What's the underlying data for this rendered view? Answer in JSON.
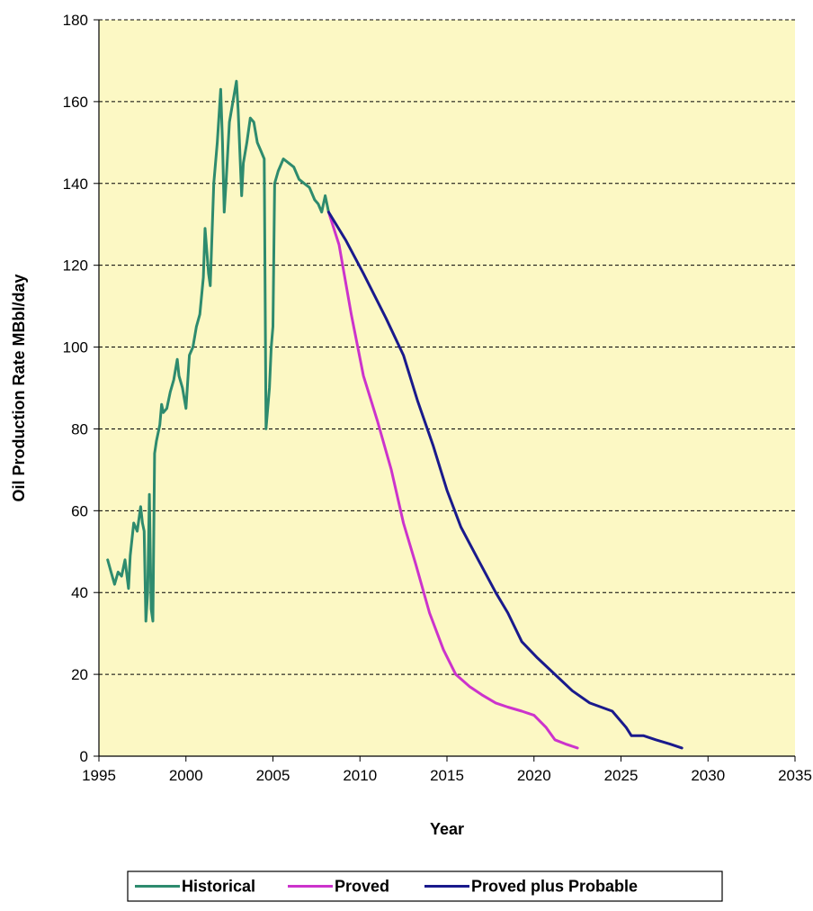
{
  "chart_data": {
    "type": "line",
    "title": "",
    "xlabel": "Year",
    "ylabel": "Oil Production Rate MBbl/day",
    "xlim": [
      1995,
      2035
    ],
    "ylim": [
      0,
      180
    ],
    "x_ticks": [
      1995,
      2000,
      2005,
      2010,
      2015,
      2020,
      2025,
      2030,
      2035
    ],
    "y_ticks": [
      0,
      20,
      40,
      60,
      80,
      100,
      120,
      140,
      160,
      180
    ],
    "grid": "horizontal dashed",
    "legend_position": "bottom",
    "plot_background": "#FCF8C4",
    "series": [
      {
        "name": "Historical",
        "color": "#2E8B6E",
        "points": [
          [
            1995.5,
            48
          ],
          [
            1995.7,
            45
          ],
          [
            1995.9,
            42
          ],
          [
            1996.1,
            45
          ],
          [
            1996.3,
            44
          ],
          [
            1996.5,
            48
          ],
          [
            1996.7,
            41
          ],
          [
            1996.8,
            49
          ],
          [
            1997.0,
            57
          ],
          [
            1997.2,
            55
          ],
          [
            1997.4,
            61
          ],
          [
            1997.5,
            57
          ],
          [
            1997.6,
            55
          ],
          [
            1997.7,
            33
          ],
          [
            1997.8,
            40
          ],
          [
            1997.9,
            64
          ],
          [
            1998.0,
            36
          ],
          [
            1998.1,
            33
          ],
          [
            1998.2,
            74
          ],
          [
            1998.3,
            77
          ],
          [
            1998.5,
            81
          ],
          [
            1998.6,
            86
          ],
          [
            1998.7,
            84
          ],
          [
            1998.9,
            85
          ],
          [
            1999.1,
            89
          ],
          [
            1999.3,
            92
          ],
          [
            1999.5,
            97
          ],
          [
            1999.6,
            93
          ],
          [
            1999.8,
            90
          ],
          [
            2000.0,
            85
          ],
          [
            2000.2,
            98
          ],
          [
            2000.4,
            100
          ],
          [
            2000.6,
            105
          ],
          [
            2000.8,
            108
          ],
          [
            2001.0,
            117
          ],
          [
            2001.1,
            129
          ],
          [
            2001.3,
            118
          ],
          [
            2001.4,
            115
          ],
          [
            2001.6,
            140
          ],
          [
            2001.8,
            150
          ],
          [
            2002.0,
            163
          ],
          [
            2002.1,
            150
          ],
          [
            2002.2,
            133
          ],
          [
            2002.3,
            140
          ],
          [
            2002.5,
            155
          ],
          [
            2002.7,
            160
          ],
          [
            2002.9,
            165
          ],
          [
            2003.0,
            158
          ],
          [
            2003.2,
            137
          ],
          [
            2003.3,
            145
          ],
          [
            2003.5,
            150
          ],
          [
            2003.7,
            156
          ],
          [
            2003.9,
            155
          ],
          [
            2004.1,
            150
          ],
          [
            2004.3,
            148
          ],
          [
            2004.5,
            146
          ],
          [
            2004.6,
            80
          ],
          [
            2004.8,
            90
          ],
          [
            2004.9,
            100
          ],
          [
            2005.0,
            105
          ],
          [
            2005.1,
            140
          ],
          [
            2005.3,
            143
          ],
          [
            2005.6,
            146
          ],
          [
            2005.9,
            145
          ],
          [
            2006.2,
            144
          ],
          [
            2006.5,
            141
          ],
          [
            2006.8,
            140
          ],
          [
            2007.1,
            139
          ],
          [
            2007.4,
            136
          ],
          [
            2007.6,
            135
          ],
          [
            2007.8,
            133
          ],
          [
            2008.0,
            137
          ],
          [
            2008.2,
            133
          ]
        ]
      },
      {
        "name": "Proved",
        "color": "#CC33CC",
        "points": [
          [
            2008.2,
            133
          ],
          [
            2008.8,
            125
          ],
          [
            2009.5,
            108
          ],
          [
            2010.2,
            93
          ],
          [
            2011.0,
            82
          ],
          [
            2011.8,
            70
          ],
          [
            2012.5,
            57
          ],
          [
            2013.2,
            47
          ],
          [
            2014.0,
            35
          ],
          [
            2014.8,
            26
          ],
          [
            2015.5,
            20
          ],
          [
            2016.3,
            17
          ],
          [
            2017.0,
            15
          ],
          [
            2017.8,
            13
          ],
          [
            2018.5,
            12
          ],
          [
            2019.3,
            11
          ],
          [
            2020.0,
            10
          ],
          [
            2020.7,
            7
          ],
          [
            2021.2,
            4
          ],
          [
            2021.8,
            3
          ],
          [
            2022.5,
            2
          ]
        ]
      },
      {
        "name": "Proved plus Probable",
        "color": "#1A1A8C",
        "points": [
          [
            2008.2,
            133
          ],
          [
            2009.2,
            126
          ],
          [
            2010.2,
            118
          ],
          [
            2011.5,
            107
          ],
          [
            2012.5,
            98
          ],
          [
            2013.3,
            87
          ],
          [
            2014.2,
            76
          ],
          [
            2015.0,
            65
          ],
          [
            2015.8,
            56
          ],
          [
            2016.8,
            48
          ],
          [
            2017.8,
            40
          ],
          [
            2018.5,
            35
          ],
          [
            2019.3,
            28
          ],
          [
            2020.2,
            24
          ],
          [
            2021.2,
            20
          ],
          [
            2022.2,
            16
          ],
          [
            2023.2,
            13
          ],
          [
            2024.5,
            11
          ],
          [
            2025.3,
            7
          ],
          [
            2025.6,
            5
          ],
          [
            2026.3,
            5
          ],
          [
            2027.0,
            4
          ],
          [
            2027.8,
            3
          ],
          [
            2028.5,
            2
          ]
        ]
      }
    ]
  }
}
